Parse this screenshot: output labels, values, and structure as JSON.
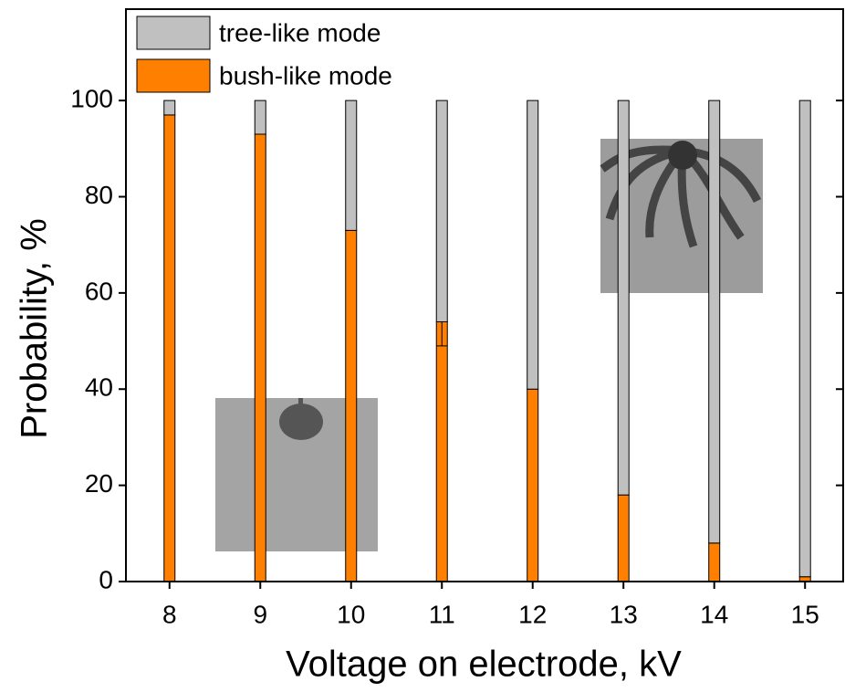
{
  "chart_data": {
    "type": "stacked-bar",
    "x_label": "Voltage on electrode, kV",
    "y_label": "Probability, %",
    "x": [
      8,
      9,
      10,
      11,
      12,
      13,
      14,
      15
    ],
    "series": [
      {
        "name": "bush-like mode",
        "color": "#ff7f00",
        "values": [
          97,
          93,
          73,
          54,
          40,
          18,
          8,
          1
        ],
        "errors": [
          null,
          null,
          null,
          5,
          null,
          null,
          null,
          null
        ]
      },
      {
        "name": "tree-like mode",
        "color": "#c0c0c0",
        "values": [
          3,
          7,
          27,
          46,
          60,
          82,
          92,
          99
        ]
      }
    ],
    "xlim": [
      7.52,
      15.42
    ],
    "xticks": [
      8,
      9,
      10,
      11,
      12,
      13,
      14,
      15
    ],
    "ylim": [
      0,
      119
    ],
    "yticks": [
      0,
      20,
      40,
      60,
      80,
      100
    ],
    "legend": "top-left"
  }
}
